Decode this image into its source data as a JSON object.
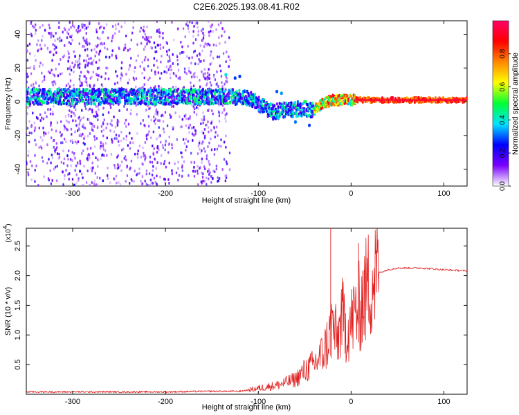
{
  "figure": {
    "title": "C2E6.2025.193.08.41.R02"
  },
  "chart_data": [
    {
      "type": "heatmap",
      "xlabel": "Height of straight line (km)",
      "ylabel": "Frequency (Hz)",
      "xlim": [
        -350,
        125
      ],
      "ylim": [
        -50,
        48
      ],
      "xticks": [
        -300,
        -200,
        -100,
        0,
        100
      ],
      "yticks": [
        -40,
        -20,
        0,
        20,
        40
      ],
      "colorbar": {
        "label": "Normalized spectral amplitude",
        "range": [
          0,
          1
        ],
        "ticks": [
          "0.0",
          "0.2",
          "0.4",
          "0.6",
          "0.8"
        ],
        "colors": [
          "#ffffff",
          "#7a00ff",
          "#0000ff",
          "#00e5ff",
          "#00ff33",
          "#ffff00",
          "#ff8800",
          "#ff0000",
          "#ff0066"
        ]
      },
      "ridge": [
        {
          "x": -350,
          "f": 3
        },
        {
          "x": -300,
          "f": 3
        },
        {
          "x": -250,
          "f": 3
        },
        {
          "x": -200,
          "f": 3
        },
        {
          "x": -150,
          "f": 3
        },
        {
          "x": -130,
          "f": 3
        },
        {
          "x": -110,
          "f": 2
        },
        {
          "x": -95,
          "f": -3
        },
        {
          "x": -85,
          "f": -6
        },
        {
          "x": -70,
          "f": -5
        },
        {
          "x": -55,
          "f": -4
        },
        {
          "x": -40,
          "f": -5
        },
        {
          "x": -30,
          "f": -1
        },
        {
          "x": -20,
          "f": 1
        },
        {
          "x": 0,
          "f": 1
        },
        {
          "x": 50,
          "f": 1
        },
        {
          "x": 125,
          "f": 1
        }
      ]
    },
    {
      "type": "line",
      "xlabel": "Height of straight line (km)",
      "ylabel": "SNR (10 * v/v)",
      "scale_label": "(x10",
      "scale_exp": "4",
      "xlim": [
        -350,
        125
      ],
      "ylim": [
        0,
        2.8
      ],
      "xticks": [
        -300,
        -200,
        -100,
        0,
        100
      ],
      "yticks": [
        0.5,
        1.0,
        1.5,
        2.0,
        2.5
      ],
      "ytick_labels": [
        "0.5",
        "1.0",
        "1.5",
        "2.0",
        "2.5"
      ],
      "color": "#e02020",
      "series": [
        {
          "x": [
            -350,
            -300,
            -250,
            -200,
            -150,
            -120,
            -100,
            -80,
            -60,
            -50,
            -40,
            -30,
            -25,
            -20,
            -15,
            -10,
            -5,
            0,
            5,
            10,
            15,
            20,
            25,
            30,
            40,
            50,
            75,
            100,
            125
          ],
          "y": [
            0.04,
            0.04,
            0.04,
            0.04,
            0.05,
            0.05,
            0.1,
            0.15,
            0.25,
            0.4,
            0.5,
            0.7,
            0.9,
            1.2,
            0.9,
            1.3,
            1.1,
            1.2,
            1.4,
            1.5,
            1.7,
            1.9,
            2.0,
            2.05,
            2.1,
            2.13,
            2.13,
            2.1,
            2.08
          ]
        }
      ],
      "spikes": [
        {
          "x": -22,
          "y": 2.8
        },
        {
          "x": 8,
          "y": 2.55
        },
        {
          "x": 14,
          "y": 2.1
        }
      ]
    }
  ]
}
